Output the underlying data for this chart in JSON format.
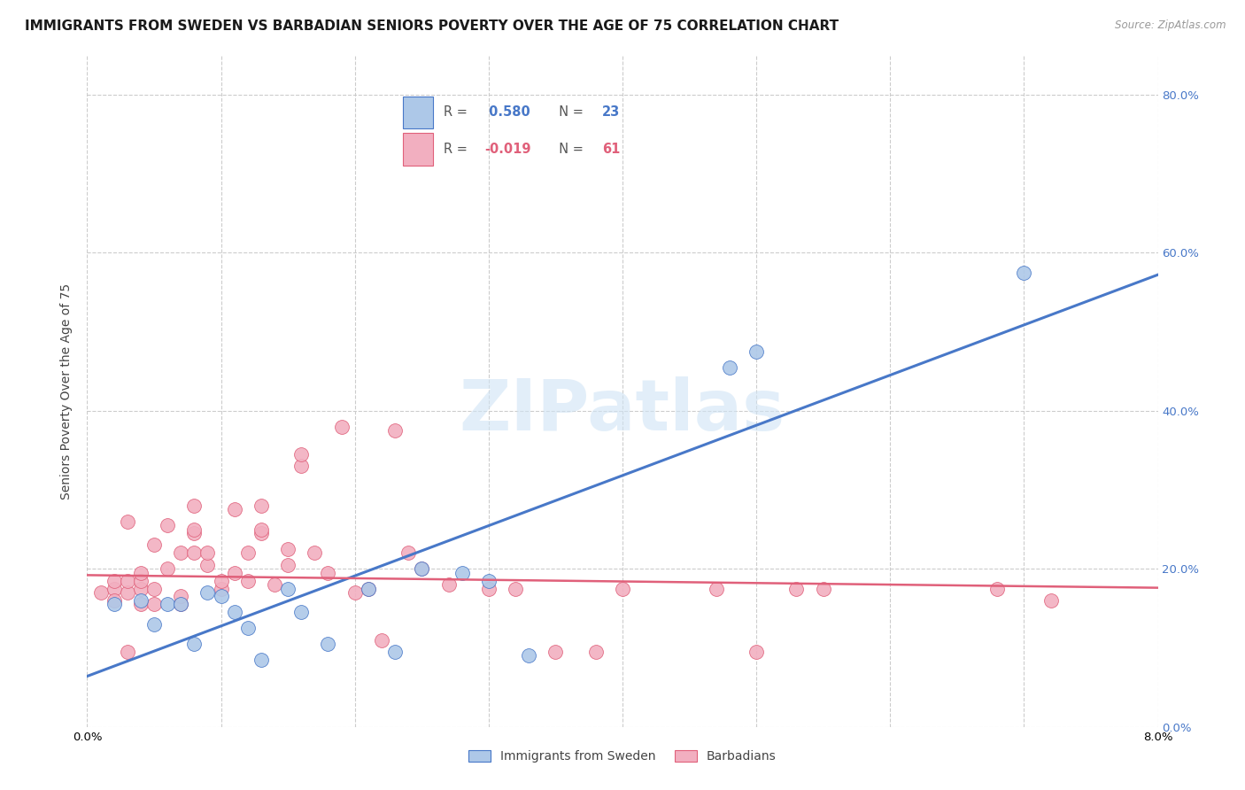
{
  "title": "IMMIGRANTS FROM SWEDEN VS BARBADIAN SENIORS POVERTY OVER THE AGE OF 75 CORRELATION CHART",
  "source": "Source: ZipAtlas.com",
  "ylabel": "Seniors Poverty Over the Age of 75",
  "xlim": [
    0.0,
    0.08
  ],
  "ylim": [
    0.0,
    0.85
  ],
  "yticks": [
    0.0,
    0.2,
    0.4,
    0.6,
    0.8
  ],
  "ytick_labels": [
    "0.0%",
    "20.0%",
    "40.0%",
    "60.0%",
    "80.0%"
  ],
  "xtick_labels": [
    "0.0%",
    "",
    "",
    "",
    "",
    "",
    "",
    "",
    "8.0%"
  ],
  "blue_R": 0.58,
  "blue_N": 23,
  "pink_R": -0.019,
  "pink_N": 61,
  "blue_color": "#adc8e8",
  "pink_color": "#f2afc0",
  "line_blue": "#4878c8",
  "line_pink": "#e0607a",
  "watermark_color": "#d0e4f5",
  "blue_points_x": [
    0.002,
    0.004,
    0.005,
    0.006,
    0.007,
    0.008,
    0.009,
    0.01,
    0.011,
    0.012,
    0.013,
    0.015,
    0.016,
    0.018,
    0.021,
    0.023,
    0.025,
    0.028,
    0.03,
    0.033,
    0.048,
    0.05,
    0.07
  ],
  "blue_points_y": [
    0.155,
    0.16,
    0.13,
    0.155,
    0.155,
    0.105,
    0.17,
    0.165,
    0.145,
    0.125,
    0.085,
    0.175,
    0.145,
    0.105,
    0.175,
    0.095,
    0.2,
    0.195,
    0.185,
    0.09,
    0.455,
    0.475,
    0.575
  ],
  "pink_points_x": [
    0.001,
    0.002,
    0.002,
    0.003,
    0.003,
    0.003,
    0.004,
    0.004,
    0.004,
    0.004,
    0.005,
    0.005,
    0.005,
    0.006,
    0.006,
    0.007,
    0.007,
    0.007,
    0.008,
    0.008,
    0.008,
    0.008,
    0.009,
    0.009,
    0.01,
    0.01,
    0.011,
    0.011,
    0.012,
    0.012,
    0.013,
    0.013,
    0.013,
    0.014,
    0.015,
    0.015,
    0.016,
    0.016,
    0.017,
    0.018,
    0.019,
    0.02,
    0.021,
    0.022,
    0.023,
    0.024,
    0.025,
    0.027,
    0.03,
    0.032,
    0.035,
    0.038,
    0.04,
    0.047,
    0.05,
    0.053,
    0.055,
    0.068,
    0.072,
    0.002,
    0.003
  ],
  "pink_points_y": [
    0.17,
    0.175,
    0.185,
    0.17,
    0.185,
    0.26,
    0.155,
    0.175,
    0.185,
    0.195,
    0.155,
    0.175,
    0.23,
    0.2,
    0.255,
    0.155,
    0.165,
    0.22,
    0.22,
    0.245,
    0.25,
    0.28,
    0.205,
    0.22,
    0.175,
    0.185,
    0.195,
    0.275,
    0.185,
    0.22,
    0.245,
    0.25,
    0.28,
    0.18,
    0.205,
    0.225,
    0.33,
    0.345,
    0.22,
    0.195,
    0.38,
    0.17,
    0.175,
    0.11,
    0.375,
    0.22,
    0.2,
    0.18,
    0.175,
    0.175,
    0.095,
    0.095,
    0.175,
    0.175,
    0.095,
    0.175,
    0.175,
    0.175,
    0.16,
    0.16,
    0.095
  ],
  "legend_label_blue": "Immigrants from Sweden",
  "legend_label_pink": "Barbadians",
  "title_fontsize": 11,
  "axis_label_fontsize": 10,
  "tick_fontsize": 9.5,
  "legend_fontsize": 10,
  "background_color": "#ffffff",
  "grid_color": "#cccccc"
}
